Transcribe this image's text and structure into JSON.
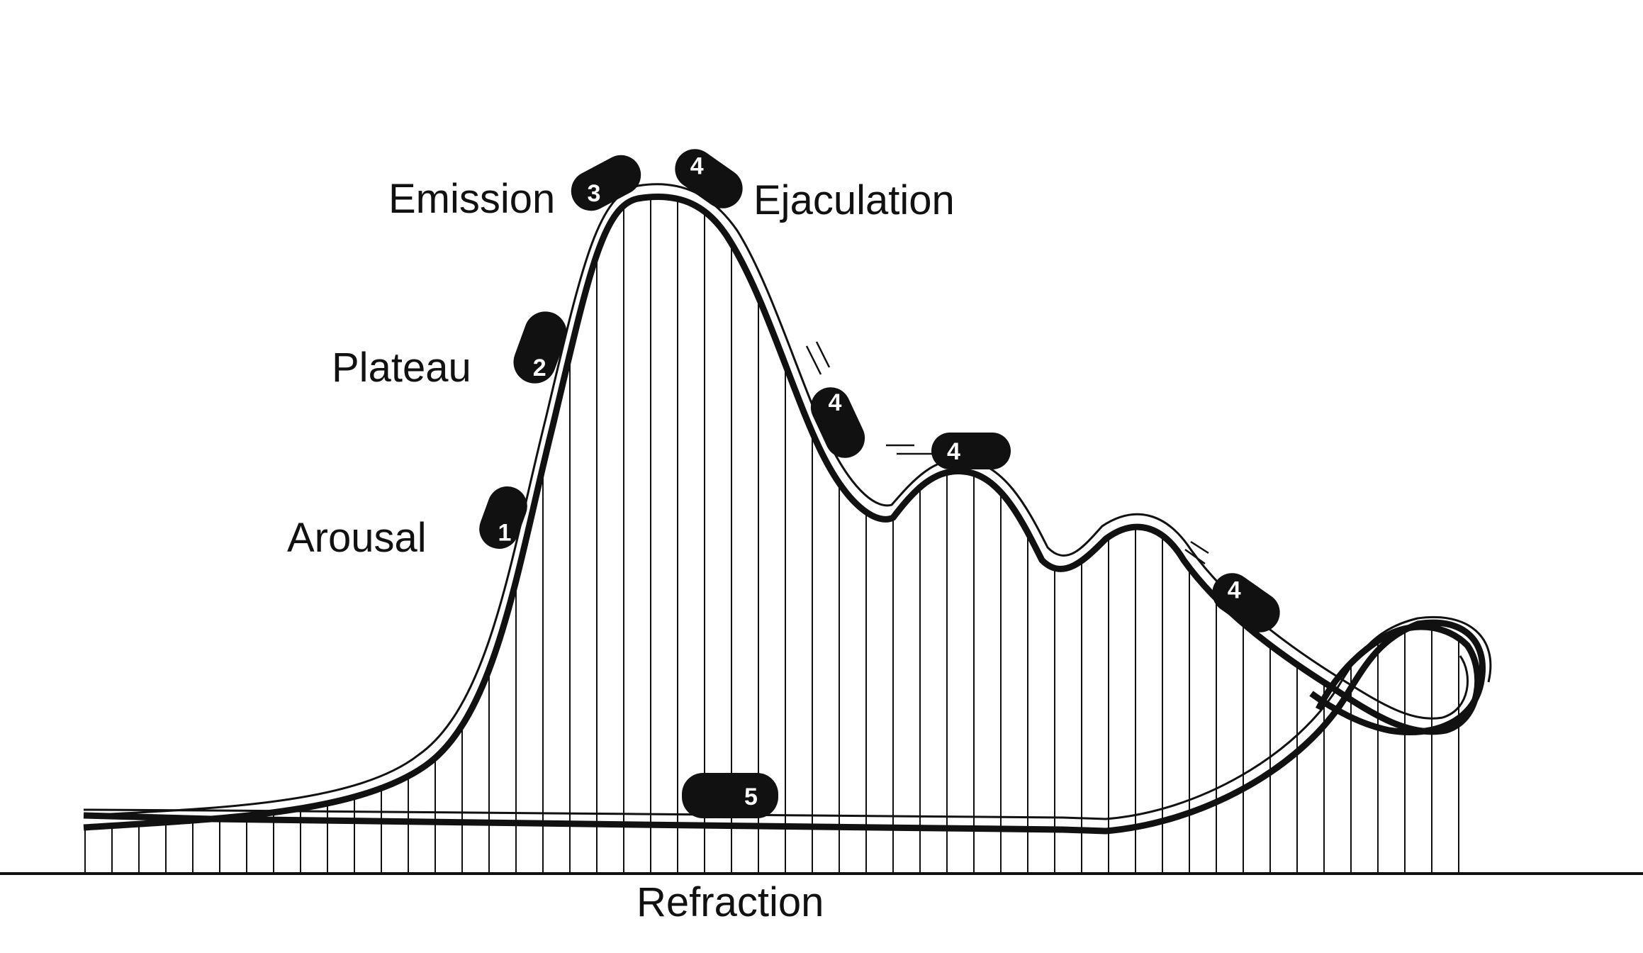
{
  "labels": {
    "arousal": "Arousal",
    "plateau": "Plateau",
    "emission": "Emission",
    "ejaculation": "Ejaculation",
    "refraction": "Refraction"
  },
  "markers": {
    "arousal": "1",
    "plateau": "2",
    "emission": "3",
    "ejaculation": "4",
    "descent_a": "4",
    "descent_b": "4",
    "descent_c": "4",
    "refraction": "5"
  },
  "colors": {
    "ink": "#111111",
    "background": "#ffffff",
    "marker_text": "#ffffff"
  }
}
